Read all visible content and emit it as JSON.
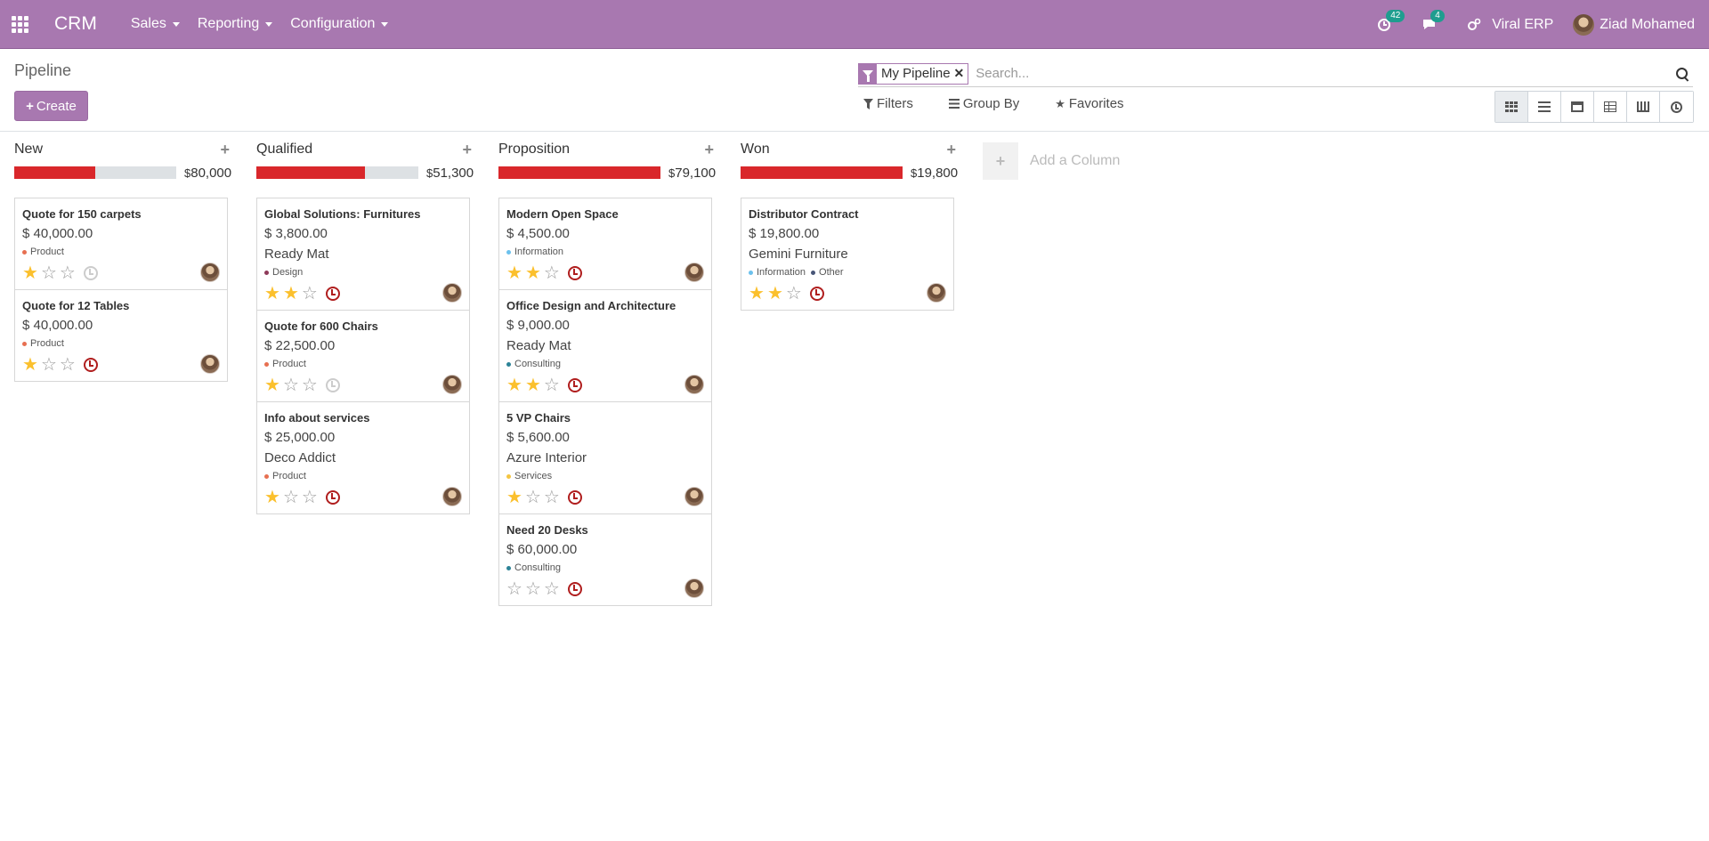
{
  "navbar": {
    "brand": "CRM",
    "menus": [
      "Sales",
      "Reporting",
      "Configuration"
    ],
    "activity_count": "42",
    "message_count": "4",
    "company": "Viral ERP",
    "user": "Ziad Mohamed"
  },
  "control_panel": {
    "breadcrumb": "Pipeline",
    "create_label": "Create",
    "facet_label": "My Pipeline",
    "search_placeholder": "Search...",
    "filters_label": "Filters",
    "groupby_label": "Group By",
    "favorites_label": "Favorites"
  },
  "colors": {
    "brand": "#a878b0",
    "progress_red": "#d9272b",
    "star": "#fbc02d",
    "overdue": "#b01e1e"
  },
  "columns": [
    {
      "title": "New",
      "currency": "$",
      "total": "80,000",
      "progress_fraction": 0.5,
      "cards": [
        {
          "title": "Quote for 150 carpets",
          "amount": "$ 40,000.00",
          "partner": "",
          "tags": [
            {
              "label": "Product",
              "color": "#e76f51"
            }
          ],
          "stars": 1,
          "activity": "none"
        },
        {
          "title": "Quote for 12 Tables",
          "amount": "$ 40,000.00",
          "partner": "",
          "tags": [
            {
              "label": "Product",
              "color": "#e76f51"
            }
          ],
          "stars": 1,
          "activity": "overdue"
        }
      ]
    },
    {
      "title": "Qualified",
      "currency": "$",
      "total": "51,300",
      "progress_fraction": 0.67,
      "cards": [
        {
          "title": "Global Solutions: Furnitures",
          "amount": "$ 3,800.00",
          "partner": "Ready Mat",
          "tags": [
            {
              "label": "Design",
              "color": "#8e3a59"
            }
          ],
          "stars": 2,
          "activity": "overdue"
        },
        {
          "title": "Quote for 600 Chairs",
          "amount": "$ 22,500.00",
          "partner": "",
          "tags": [
            {
              "label": "Product",
              "color": "#e76f51"
            }
          ],
          "stars": 1,
          "activity": "none"
        },
        {
          "title": "Info about services",
          "amount": "$ 25,000.00",
          "partner": "Deco Addict",
          "tags": [
            {
              "label": "Product",
              "color": "#e76f51"
            }
          ],
          "stars": 1,
          "activity": "overdue"
        }
      ]
    },
    {
      "title": "Proposition",
      "currency": "$",
      "total": "79,100",
      "progress_fraction": 1.0,
      "cards": [
        {
          "title": "Modern Open Space",
          "amount": "$ 4,500.00",
          "partner": "",
          "tags": [
            {
              "label": "Information",
              "color": "#6cc1ed"
            }
          ],
          "stars": 2,
          "activity": "overdue"
        },
        {
          "title": "Office Design and Architecture",
          "amount": "$ 9,000.00",
          "partner": "Ready Mat",
          "tags": [
            {
              "label": "Consulting",
              "color": "#2c8397"
            }
          ],
          "stars": 2,
          "activity": "overdue"
        },
        {
          "title": "5 VP Chairs",
          "amount": "$ 5,600.00",
          "partner": "Azure Interior",
          "tags": [
            {
              "label": "Services",
              "color": "#f4c542"
            }
          ],
          "stars": 1,
          "activity": "overdue"
        },
        {
          "title": "Need 20 Desks",
          "amount": "$ 60,000.00",
          "partner": "",
          "tags": [
            {
              "label": "Consulting",
              "color": "#2c8397"
            }
          ],
          "stars": 0,
          "activity": "overdue"
        }
      ]
    },
    {
      "title": "Won",
      "currency": "$",
      "total": "19,800",
      "progress_fraction": 1.0,
      "cards": [
        {
          "title": "Distributor Contract",
          "amount": "$ 19,800.00",
          "partner": "Gemini Furniture",
          "tags": [
            {
              "label": "Information",
              "color": "#6cc1ed"
            },
            {
              "label": "Other",
              "color": "#475577"
            }
          ],
          "stars": 2,
          "activity": "overdue"
        }
      ]
    }
  ],
  "add_column_label": "Add a Column"
}
